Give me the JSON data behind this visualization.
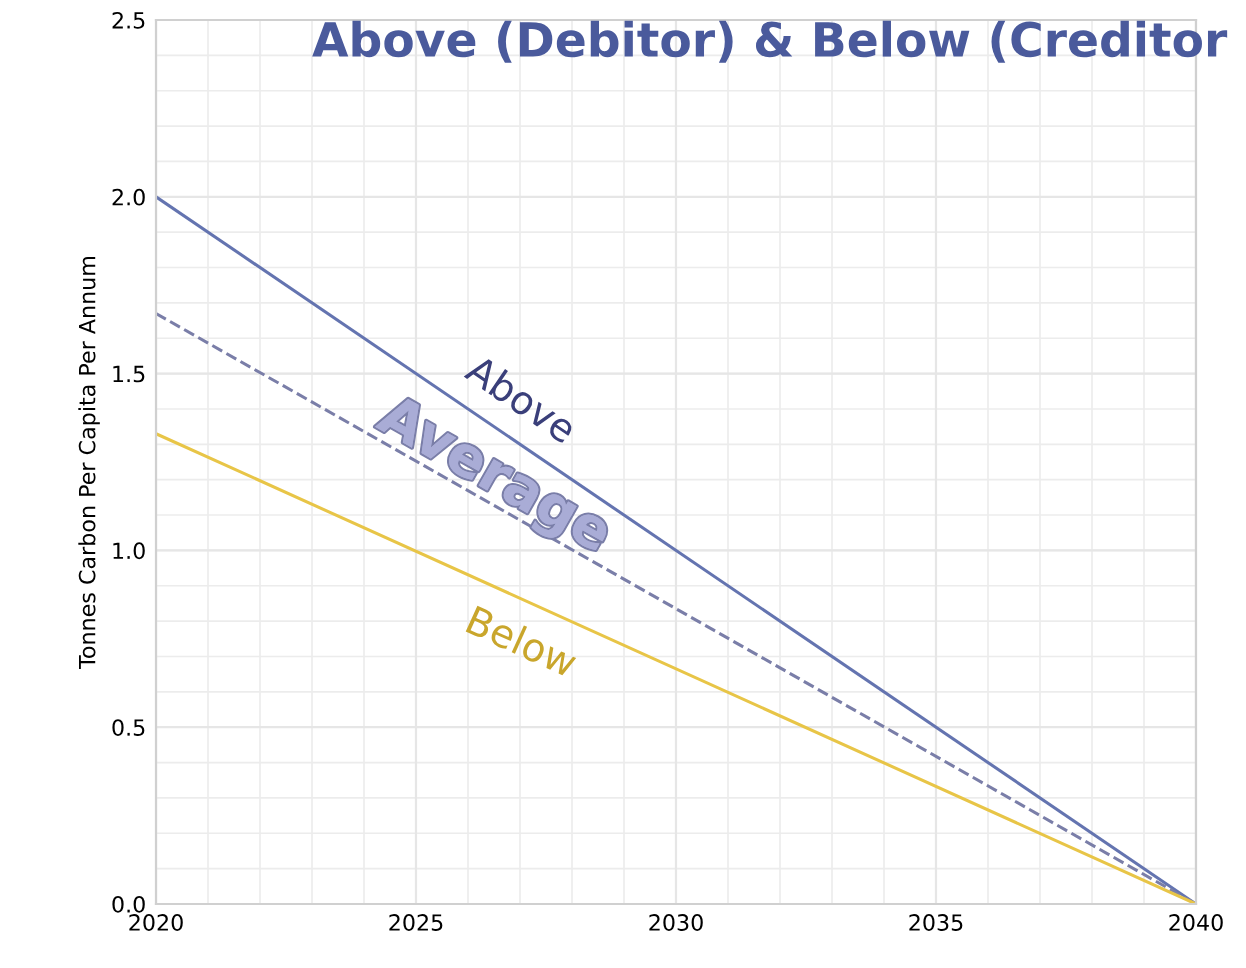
{
  "chart_data": {
    "type": "line",
    "title": "Above (Debitor) & Below (Creditor",
    "ylabel": "Tonnes Carbon Per Capita Per Annum",
    "x": [
      2020,
      2040
    ],
    "series": [
      {
        "name": "Above",
        "color": "#6474b0",
        "values": [
          2.0,
          0.0
        ]
      },
      {
        "name": "Average",
        "color": "#7a7ea8",
        "values": [
          1.67,
          0.0
        ],
        "line_style": "dashed"
      },
      {
        "name": "Below",
        "color": "#e8c547",
        "values": [
          1.33,
          0.0
        ]
      }
    ],
    "xlim": [
      2020,
      2040
    ],
    "xticks": [
      2020,
      2025,
      2030,
      2035,
      2040
    ],
    "ylim": [
      0,
      2.5
    ],
    "yticks": [
      {
        "value": 0,
        "label": "0.0"
      },
      {
        "value": 0.5,
        "label": "0.5"
      },
      {
        "value": 1.0,
        "label": "1.0"
      },
      {
        "value": 1.5,
        "label": "1.5"
      },
      {
        "value": 2.0,
        "label": "2.0"
      },
      {
        "value": 2.5,
        "label": "2.5"
      }
    ],
    "grid": true,
    "legend": false
  }
}
